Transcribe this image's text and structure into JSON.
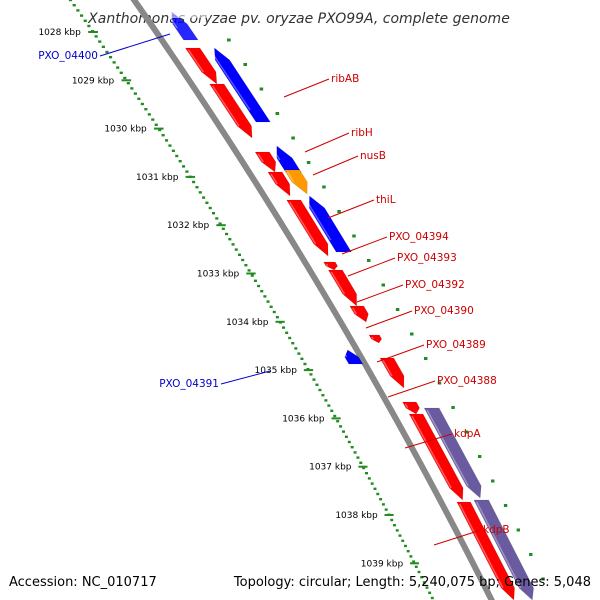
{
  "title": "Xanthomonas oryzae pv. oryzae PXO99A, complete genome",
  "footer": {
    "accession": "Accession: NC_010717",
    "summary": "Topology: circular; Length: 5,240,075 bp; Genes: 5,048"
  },
  "colors": {
    "forward_gene": "#ff0000",
    "reverse_gene": "#0000ff",
    "orange_gene": "#ff9900",
    "purple_gene": "#6a5aa0",
    "backbone": "#888888",
    "tick_ring": "#228b22",
    "label_forward": "#cc0000",
    "label_reverse": "#0000cc"
  },
  "ticks": [
    {
      "label": "1028 kbp"
    },
    {
      "label": "1029 kbp"
    },
    {
      "label": "1030 kbp"
    },
    {
      "label": "1031 kbp"
    },
    {
      "label": "1032 kbp"
    },
    {
      "label": "1033 kbp"
    },
    {
      "label": "1034 kbp"
    },
    {
      "label": "1035 kbp"
    },
    {
      "label": "1036 kbp"
    },
    {
      "label": "1037 kbp"
    },
    {
      "label": "1038 kbp"
    },
    {
      "label": "1039 kbp"
    }
  ],
  "gene_labels": [
    {
      "text": "ribAB",
      "strand": "forward"
    },
    {
      "text": "ribH",
      "strand": "forward"
    },
    {
      "text": "nusB",
      "strand": "forward"
    },
    {
      "text": "thiL",
      "strand": "forward"
    },
    {
      "text": "PXO_04394",
      "strand": "forward"
    },
    {
      "text": "PXO_04393",
      "strand": "forward"
    },
    {
      "text": "PXO_04392",
      "strand": "forward"
    },
    {
      "text": "PXO_04390",
      "strand": "forward"
    },
    {
      "text": "PXO_04389",
      "strand": "forward"
    },
    {
      "text": "PXO_04388",
      "strand": "forward"
    },
    {
      "text": "kdpA",
      "strand": "forward"
    },
    {
      "text": "kdpB",
      "strand": "forward"
    },
    {
      "text": "PXO_04400",
      "strand": "reverse"
    },
    {
      "text": "PXO_04391",
      "strand": "reverse"
    }
  ]
}
